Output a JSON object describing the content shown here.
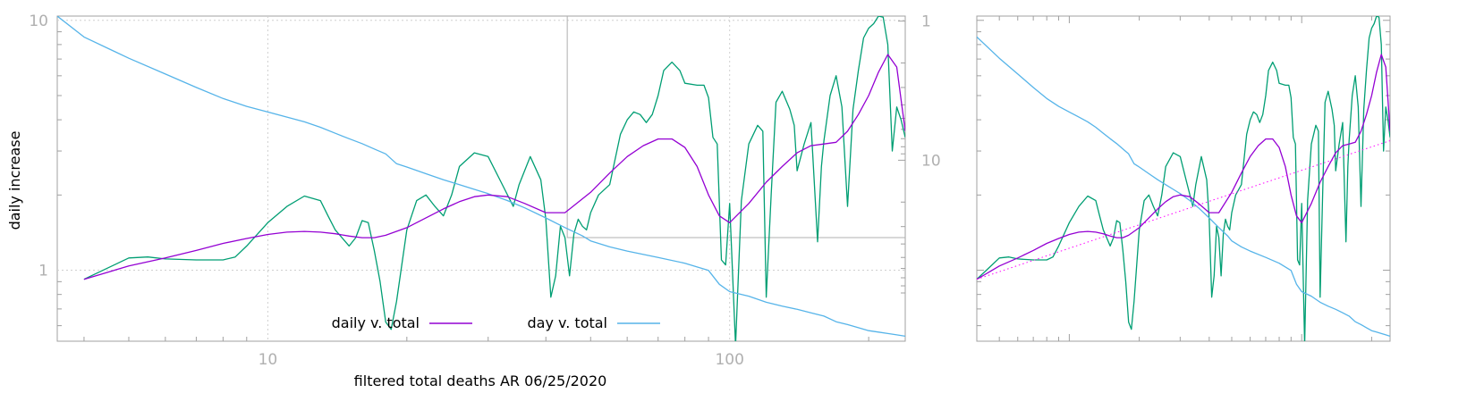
{
  "chart_data": [
    {
      "type": "line",
      "xlabel": "filtered total deaths AR 06/25/2020",
      "ylabel": "daily increase",
      "x_scale": "log",
      "y_scale": "log",
      "xlim": [
        3.5,
        240
      ],
      "ylim": [
        0.52,
        10.4
      ],
      "y2_scale": "log",
      "y2_ticks": [
        1,
        10
      ],
      "y2_tick_labels": [
        "1",
        "10"
      ],
      "x_ticks": [
        10,
        100
      ],
      "x_tick_labels": [
        "10",
        "100"
      ],
      "y_ticks": [
        1,
        10
      ],
      "y_tick_labels": [
        "1",
        "10"
      ],
      "grid": true,
      "legend_placement": "bottom",
      "series": [
        {
          "name": "daily v. total",
          "color": "#9400d3",
          "x": [
            4.0,
            5,
            6,
            7,
            8,
            9,
            10,
            11,
            12,
            13,
            14,
            15,
            16,
            17,
            18,
            20,
            22,
            24,
            26,
            28,
            30,
            33,
            36,
            40,
            44,
            50,
            55,
            60,
            65,
            70,
            75,
            80,
            85,
            90,
            95,
            100,
            110,
            120,
            130,
            140,
            150,
            160,
            170,
            180,
            190,
            200,
            210,
            220,
            230,
            240
          ],
          "y": [
            0.92,
            1.04,
            1.12,
            1.2,
            1.28,
            1.34,
            1.39,
            1.42,
            1.43,
            1.42,
            1.4,
            1.37,
            1.35,
            1.35,
            1.38,
            1.48,
            1.62,
            1.76,
            1.88,
            1.97,
            2.0,
            1.97,
            1.85,
            1.7,
            1.7,
            2.05,
            2.45,
            2.85,
            3.15,
            3.35,
            3.35,
            3.1,
            2.6,
            2.0,
            1.65,
            1.55,
            1.85,
            2.25,
            2.6,
            2.95,
            3.15,
            3.2,
            3.25,
            3.6,
            4.2,
            5.0,
            6.2,
            7.3,
            6.5,
            3.6
          ]
        },
        {
          "name": "",
          "color": "#009e73",
          "x": [
            4.0,
            4.5,
            5,
            5.5,
            6,
            7,
            8,
            8.5,
            9,
            10,
            11,
            12,
            13,
            13.5,
            14,
            15,
            15.5,
            16,
            16.5,
            17,
            17.5,
            18,
            18.5,
            19,
            20,
            21,
            22,
            23,
            24,
            25,
            26,
            28,
            30,
            32,
            34,
            35,
            37,
            39,
            40,
            41,
            42,
            43,
            44,
            45,
            46,
            47,
            48,
            49,
            50,
            52,
            55,
            58,
            60,
            62,
            64,
            66,
            68,
            70,
            72,
            75,
            78,
            80,
            85,
            88,
            90,
            92,
            94,
            96,
            98,
            100,
            103,
            106,
            110,
            115,
            118,
            120,
            123,
            126,
            130,
            135,
            138,
            140,
            145,
            150,
            155,
            158,
            160,
            165,
            170,
            175,
            180,
            185,
            190,
            195,
            200,
            205,
            210,
            215,
            220,
            225,
            230,
            235,
            240
          ],
          "y": [
            0.92,
            1.02,
            1.12,
            1.13,
            1.11,
            1.1,
            1.1,
            1.13,
            1.25,
            1.55,
            1.8,
            1.98,
            1.9,
            1.65,
            1.45,
            1.25,
            1.35,
            1.58,
            1.55,
            1.2,
            0.9,
            0.62,
            0.58,
            0.75,
            1.45,
            1.9,
            2.0,
            1.8,
            1.65,
            2.0,
            2.6,
            2.95,
            2.85,
            2.25,
            1.8,
            2.2,
            2.85,
            2.3,
            1.6,
            0.78,
            0.95,
            1.5,
            1.35,
            0.95,
            1.4,
            1.6,
            1.5,
            1.45,
            1.7,
            2.0,
            2.2,
            3.5,
            4.0,
            4.3,
            4.2,
            3.9,
            4.2,
            5.0,
            6.3,
            6.8,
            6.3,
            5.6,
            5.5,
            5.5,
            4.9,
            3.4,
            3.2,
            1.1,
            1.05,
            1.85,
            0.5,
            1.9,
            3.2,
            3.8,
            3.6,
            0.78,
            2.0,
            4.7,
            5.2,
            4.4,
            3.8,
            2.5,
            3.2,
            3.9,
            1.3,
            2.6,
            3.3,
            5.0,
            6.0,
            4.5,
            1.8,
            4.4,
            6.3,
            8.5,
            9.3,
            9.7,
            10.4,
            10.3,
            8.0,
            3.0,
            4.5,
            4.0,
            3.4
          ]
        },
        {
          "name": "day v. total",
          "color": "#56b4e9",
          "axis": "y2",
          "x": [
            3.5,
            4,
            5,
            6,
            7,
            8,
            9,
            10,
            11,
            12,
            13,
            14,
            15,
            16,
            17,
            18,
            19,
            20,
            22,
            24,
            26,
            28,
            30,
            33,
            36,
            40,
            44,
            48,
            50,
            55,
            60,
            70,
            80,
            90,
            95,
            100,
            110,
            120,
            130,
            140,
            150,
            160,
            170,
            180,
            190,
            200,
            210,
            220,
            230,
            240
          ],
          "y": [
            0.92,
            1.3,
            1.85,
            2.4,
            3.0,
            3.6,
            4.1,
            4.5,
            4.9,
            5.3,
            5.8,
            6.4,
            7.0,
            7.6,
            8.3,
            9.0,
            10.6,
            11.2,
            12.5,
            13.8,
            15.0,
            16.2,
            17.4,
            19.5,
            22.0,
            26.0,
            30.5,
            35.0,
            38.0,
            42.0,
            45.0,
            50.0,
            55.0,
            62.0,
            78.0,
            88.0,
            95.0,
            105.0,
            112.0,
            118.0,
            125.0,
            132.0,
            145.0,
            152.0,
            160.0,
            168.0,
            172.0,
            176.0,
            180.0,
            184.0
          ]
        }
      ],
      "inset_extra_line": {
        "color": "#ff00ff",
        "style": "dotted"
      }
    }
  ]
}
